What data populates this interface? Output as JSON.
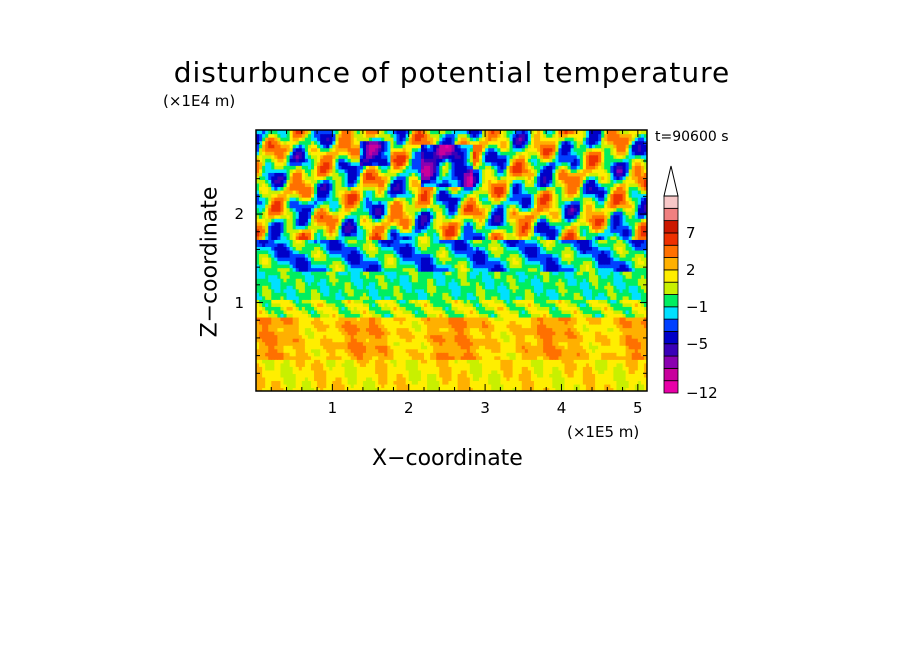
{
  "chart_data": {
    "type": "heatmap",
    "title": "disturbunce of potential temperature",
    "time_label": "t=90600 s",
    "xlabel": "X−coordinate",
    "ylabel": "Z−coordinate",
    "x_unit": "(×1E5 m)",
    "y_unit": "(×1E4 m)",
    "xlim": [
      0,
      5.12
    ],
    "ylim": [
      0,
      2.95
    ],
    "x_ticks": [
      {
        "value": 1,
        "label": "1"
      },
      {
        "value": 2,
        "label": "2"
      },
      {
        "value": 3,
        "label": "3"
      },
      {
        "value": 4,
        "label": "4"
      },
      {
        "value": 5,
        "label": "5"
      }
    ],
    "y_ticks": [
      {
        "value": 1,
        "label": "1"
      },
      {
        "value": 2,
        "label": "2"
      }
    ],
    "colorbar": {
      "levels": [
        {
          "value": -12,
          "color": "#e800a8"
        },
        {
          "value": -10,
          "color": "#c8009c"
        },
        {
          "value": -8,
          "color": "#8a00b0"
        },
        {
          "value": -6,
          "color": "#3a00b8"
        },
        {
          "value": -5,
          "color": "#0000c8"
        },
        {
          "value": -3,
          "color": "#0040ff"
        },
        {
          "value": -2,
          "color": "#00e0ff"
        },
        {
          "value": -1,
          "color": "#00ee60"
        },
        {
          "value": 0,
          "color": "#c8f000"
        },
        {
          "value": 1,
          "color": "#ffee00"
        },
        {
          "value": 2,
          "color": "#ffb000"
        },
        {
          "value": 3,
          "color": "#ff7000"
        },
        {
          "value": 5,
          "color": "#ee3000"
        },
        {
          "value": 7,
          "color": "#cc1800"
        },
        {
          "value": 9,
          "color": "#f08080"
        },
        {
          "value": 11,
          "color": "#f8c8c8"
        }
      ],
      "labels": [
        {
          "value": 7,
          "label": "7"
        },
        {
          "value": 2,
          "label": "2"
        },
        {
          "value": -1,
          "label": "−1"
        },
        {
          "value": -5,
          "label": "−5"
        },
        {
          "value": -12,
          "label": "−12"
        }
      ],
      "extend": "max"
    }
  }
}
